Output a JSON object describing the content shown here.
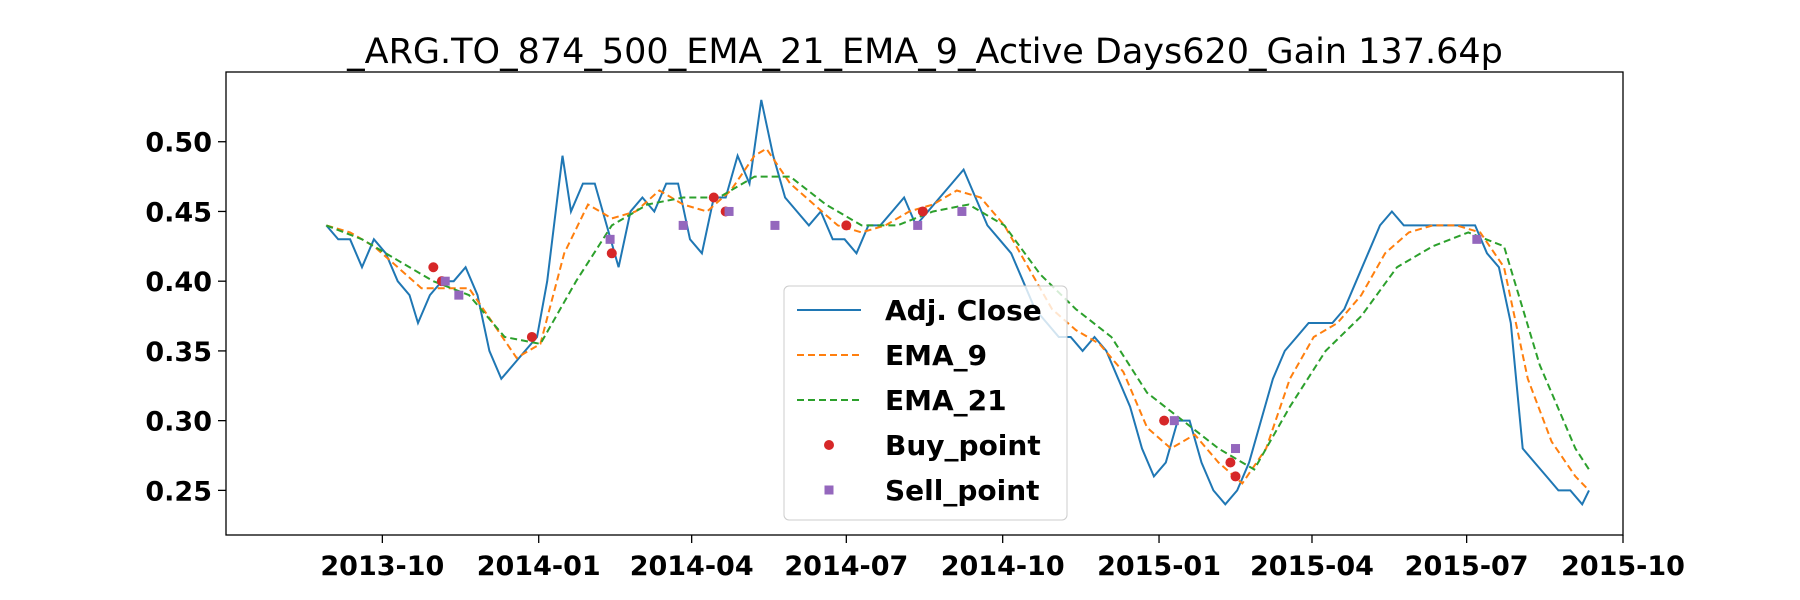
{
  "chart_data": {
    "type": "line",
    "title": "_ARG.TO_874_500_EMA_21_EMA_9_Active Days620_Gain 137.64p",
    "xlabel": "",
    "ylabel": "",
    "xlim": [
      "2013-07-01",
      "2015-10-01"
    ],
    "ylim": [
      0.218,
      0.55
    ],
    "x_ticks": [
      "2013-10",
      "2014-01",
      "2014-04",
      "2014-07",
      "2014-10",
      "2015-01",
      "2015-04",
      "2015-07",
      "2015-10"
    ],
    "y_ticks": [
      "0.25",
      "0.30",
      "0.35",
      "0.40",
      "0.45",
      "0.50"
    ],
    "grid": false,
    "legend_position": "lower-center",
    "colors": {
      "close": "#1f77b4",
      "ema9": "#ff7f0e",
      "ema21": "#2ca02c",
      "buy": "#d62728",
      "sell": "#9467bd"
    },
    "series": [
      {
        "name": "Adj. Close",
        "style": "solid",
        "points": [
          [
            "2013-08-29",
            0.44
          ],
          [
            "2013-09-05",
            0.43
          ],
          [
            "2013-09-12",
            0.43
          ],
          [
            "2013-09-19",
            0.41
          ],
          [
            "2013-09-26",
            0.43
          ],
          [
            "2013-10-03",
            0.42
          ],
          [
            "2013-10-10",
            0.4
          ],
          [
            "2013-10-17",
            0.39
          ],
          [
            "2013-10-22",
            0.37
          ],
          [
            "2013-10-29",
            0.39
          ],
          [
            "2013-11-05",
            0.4
          ],
          [
            "2013-11-12",
            0.4
          ],
          [
            "2013-11-19",
            0.41
          ],
          [
            "2013-11-26",
            0.39
          ],
          [
            "2013-12-03",
            0.35
          ],
          [
            "2013-12-10",
            0.33
          ],
          [
            "2013-12-17",
            0.34
          ],
          [
            "2013-12-24",
            0.35
          ],
          [
            "2013-12-31",
            0.36
          ],
          [
            "2014-01-06",
            0.4
          ],
          [
            "2014-01-10",
            0.44
          ],
          [
            "2014-01-15",
            0.49
          ],
          [
            "2014-01-20",
            0.45
          ],
          [
            "2014-01-27",
            0.47
          ],
          [
            "2014-02-03",
            0.47
          ],
          [
            "2014-02-10",
            0.44
          ],
          [
            "2014-02-17",
            0.41
          ],
          [
            "2014-02-24",
            0.45
          ],
          [
            "2014-03-03",
            0.46
          ],
          [
            "2014-03-10",
            0.45
          ],
          [
            "2014-03-17",
            0.47
          ],
          [
            "2014-03-24",
            0.47
          ],
          [
            "2014-03-31",
            0.43
          ],
          [
            "2014-04-07",
            0.42
          ],
          [
            "2014-04-14",
            0.46
          ],
          [
            "2014-04-21",
            0.46
          ],
          [
            "2014-04-28",
            0.49
          ],
          [
            "2014-05-05",
            0.47
          ],
          [
            "2014-05-12",
            0.53
          ],
          [
            "2014-05-19",
            0.49
          ],
          [
            "2014-05-26",
            0.46
          ],
          [
            "2014-06-02",
            0.45
          ],
          [
            "2014-06-09",
            0.44
          ],
          [
            "2014-06-16",
            0.45
          ],
          [
            "2014-06-23",
            0.43
          ],
          [
            "2014-06-30",
            0.43
          ],
          [
            "2014-07-07",
            0.42
          ],
          [
            "2014-07-14",
            0.44
          ],
          [
            "2014-07-21",
            0.44
          ],
          [
            "2014-07-28",
            0.45
          ],
          [
            "2014-08-04",
            0.46
          ],
          [
            "2014-08-11",
            0.44
          ],
          [
            "2014-08-18",
            0.45
          ],
          [
            "2014-08-25",
            0.46
          ],
          [
            "2014-09-01",
            0.47
          ],
          [
            "2014-09-08",
            0.48
          ],
          [
            "2014-09-15",
            0.46
          ],
          [
            "2014-09-22",
            0.44
          ],
          [
            "2014-09-29",
            0.43
          ],
          [
            "2014-10-06",
            0.42
          ],
          [
            "2014-10-13",
            0.4
          ],
          [
            "2014-10-20",
            0.38
          ],
          [
            "2014-10-27",
            0.37
          ],
          [
            "2014-11-03",
            0.36
          ],
          [
            "2014-11-10",
            0.36
          ],
          [
            "2014-11-17",
            0.35
          ],
          [
            "2014-11-24",
            0.36
          ],
          [
            "2014-12-01",
            0.35
          ],
          [
            "2014-12-08",
            0.33
          ],
          [
            "2014-12-15",
            0.31
          ],
          [
            "2014-12-22",
            0.28
          ],
          [
            "2014-12-29",
            0.26
          ],
          [
            "2015-01-05",
            0.27
          ],
          [
            "2015-01-12",
            0.3
          ],
          [
            "2015-01-19",
            0.3
          ],
          [
            "2015-01-26",
            0.27
          ],
          [
            "2015-02-02",
            0.25
          ],
          [
            "2015-02-09",
            0.24
          ],
          [
            "2015-02-16",
            0.25
          ],
          [
            "2015-02-23",
            0.27
          ],
          [
            "2015-03-02",
            0.3
          ],
          [
            "2015-03-09",
            0.33
          ],
          [
            "2015-03-16",
            0.35
          ],
          [
            "2015-03-23",
            0.36
          ],
          [
            "2015-03-30",
            0.37
          ],
          [
            "2015-04-06",
            0.37
          ],
          [
            "2015-04-13",
            0.37
          ],
          [
            "2015-04-20",
            0.38
          ],
          [
            "2015-04-27",
            0.4
          ],
          [
            "2015-05-04",
            0.42
          ],
          [
            "2015-05-11",
            0.44
          ],
          [
            "2015-05-18",
            0.45
          ],
          [
            "2015-05-25",
            0.44
          ],
          [
            "2015-06-01",
            0.44
          ],
          [
            "2015-06-08",
            0.44
          ],
          [
            "2015-06-15",
            0.44
          ],
          [
            "2015-06-22",
            0.44
          ],
          [
            "2015-06-29",
            0.44
          ],
          [
            "2015-07-06",
            0.44
          ],
          [
            "2015-07-13",
            0.42
          ],
          [
            "2015-07-20",
            0.41
          ],
          [
            "2015-07-27",
            0.37
          ],
          [
            "2015-08-03",
            0.28
          ],
          [
            "2015-08-10",
            0.27
          ],
          [
            "2015-08-17",
            0.26
          ],
          [
            "2015-08-24",
            0.25
          ],
          [
            "2015-08-31",
            0.25
          ],
          [
            "2015-09-07",
            0.24
          ],
          [
            "2015-09-11",
            0.25
          ]
        ]
      },
      {
        "name": "EMA_9",
        "style": "dashed",
        "points": [
          [
            "2013-08-29",
            0.44
          ],
          [
            "2013-09-12",
            0.435
          ],
          [
            "2013-09-26",
            0.425
          ],
          [
            "2013-10-10",
            0.41
          ],
          [
            "2013-10-24",
            0.395
          ],
          [
            "2013-11-07",
            0.395
          ],
          [
            "2013-11-21",
            0.395
          ],
          [
            "2013-12-05",
            0.37
          ],
          [
            "2013-12-19",
            0.345
          ],
          [
            "2014-01-02",
            0.355
          ],
          [
            "2014-01-16",
            0.42
          ],
          [
            "2014-01-30",
            0.455
          ],
          [
            "2014-02-13",
            0.445
          ],
          [
            "2014-02-27",
            0.45
          ],
          [
            "2014-03-13",
            0.465
          ],
          [
            "2014-03-27",
            0.455
          ],
          [
            "2014-04-10",
            0.45
          ],
          [
            "2014-04-24",
            0.465
          ],
          [
            "2014-05-08",
            0.49
          ],
          [
            "2014-05-15",
            0.495
          ],
          [
            "2014-05-29",
            0.47
          ],
          [
            "2014-06-12",
            0.455
          ],
          [
            "2014-06-26",
            0.44
          ],
          [
            "2014-07-10",
            0.435
          ],
          [
            "2014-07-24",
            0.44
          ],
          [
            "2014-08-07",
            0.45
          ],
          [
            "2014-08-21",
            0.455
          ],
          [
            "2014-09-04",
            0.465
          ],
          [
            "2014-09-18",
            0.46
          ],
          [
            "2014-10-02",
            0.44
          ],
          [
            "2014-10-16",
            0.41
          ],
          [
            "2014-10-30",
            0.38
          ],
          [
            "2014-11-13",
            0.365
          ],
          [
            "2014-11-27",
            0.355
          ],
          [
            "2014-12-11",
            0.335
          ],
          [
            "2014-12-25",
            0.295
          ],
          [
            "2015-01-08",
            0.28
          ],
          [
            "2015-01-22",
            0.29
          ],
          [
            "2015-02-05",
            0.27
          ],
          [
            "2015-02-19",
            0.255
          ],
          [
            "2015-03-05",
            0.28
          ],
          [
            "2015-03-19",
            0.33
          ],
          [
            "2015-04-02",
            0.36
          ],
          [
            "2015-04-16",
            0.37
          ],
          [
            "2015-04-30",
            0.39
          ],
          [
            "2015-05-14",
            0.42
          ],
          [
            "2015-05-28",
            0.435
          ],
          [
            "2015-06-11",
            0.44
          ],
          [
            "2015-06-25",
            0.44
          ],
          [
            "2015-07-09",
            0.435
          ],
          [
            "2015-07-23",
            0.41
          ],
          [
            "2015-08-06",
            0.33
          ],
          [
            "2015-08-20",
            0.285
          ],
          [
            "2015-09-03",
            0.26
          ],
          [
            "2015-09-11",
            0.25
          ]
        ]
      },
      {
        "name": "EMA_21",
        "style": "dashed",
        "points": [
          [
            "2013-08-29",
            0.44
          ],
          [
            "2013-09-19",
            0.43
          ],
          [
            "2013-10-10",
            0.415
          ],
          [
            "2013-10-31",
            0.4
          ],
          [
            "2013-11-21",
            0.39
          ],
          [
            "2013-12-12",
            0.36
          ],
          [
            "2014-01-02",
            0.355
          ],
          [
            "2014-01-23",
            0.4
          ],
          [
            "2014-02-13",
            0.44
          ],
          [
            "2014-03-06",
            0.455
          ],
          [
            "2014-03-27",
            0.46
          ],
          [
            "2014-04-17",
            0.46
          ],
          [
            "2014-05-08",
            0.475
          ],
          [
            "2014-05-29",
            0.475
          ],
          [
            "2014-06-19",
            0.455
          ],
          [
            "2014-07-10",
            0.44
          ],
          [
            "2014-07-31",
            0.44
          ],
          [
            "2014-08-21",
            0.45
          ],
          [
            "2014-09-11",
            0.455
          ],
          [
            "2014-10-02",
            0.44
          ],
          [
            "2014-10-23",
            0.405
          ],
          [
            "2014-11-13",
            0.38
          ],
          [
            "2014-12-04",
            0.36
          ],
          [
            "2014-12-25",
            0.32
          ],
          [
            "2015-01-15",
            0.3
          ],
          [
            "2015-02-05",
            0.28
          ],
          [
            "2015-02-26",
            0.265
          ],
          [
            "2015-03-19",
            0.31
          ],
          [
            "2015-04-09",
            0.35
          ],
          [
            "2015-04-30",
            0.375
          ],
          [
            "2015-05-21",
            0.41
          ],
          [
            "2015-06-11",
            0.425
          ],
          [
            "2015-07-02",
            0.435
          ],
          [
            "2015-07-23",
            0.425
          ],
          [
            "2015-08-13",
            0.34
          ],
          [
            "2015-09-03",
            0.28
          ],
          [
            "2015-09-11",
            0.265
          ]
        ]
      }
    ],
    "markers": [
      {
        "name": "Buy_point",
        "shape": "circle",
        "points": [
          [
            "2013-10-31",
            0.41
          ],
          [
            "2013-11-05",
            0.4
          ],
          [
            "2013-12-28",
            0.36
          ],
          [
            "2014-02-13",
            0.42
          ],
          [
            "2014-04-14",
            0.46
          ],
          [
            "2014-04-21",
            0.45
          ],
          [
            "2014-07-01",
            0.44
          ],
          [
            "2014-08-15",
            0.45
          ],
          [
            "2015-01-04",
            0.3
          ],
          [
            "2015-02-12",
            0.27
          ],
          [
            "2015-02-15",
            0.26
          ]
        ]
      },
      {
        "name": "Sell_point",
        "shape": "square",
        "points": [
          [
            "2013-11-07",
            0.4
          ],
          [
            "2013-11-15",
            0.39
          ],
          [
            "2014-02-12",
            0.43
          ],
          [
            "2014-03-27",
            0.44
          ],
          [
            "2014-04-23",
            0.45
          ],
          [
            "2014-05-20",
            0.44
          ],
          [
            "2014-08-12",
            0.44
          ],
          [
            "2014-09-07",
            0.45
          ],
          [
            "2015-01-10",
            0.3
          ],
          [
            "2015-02-15",
            0.28
          ],
          [
            "2015-07-07",
            0.43
          ]
        ]
      }
    ]
  }
}
